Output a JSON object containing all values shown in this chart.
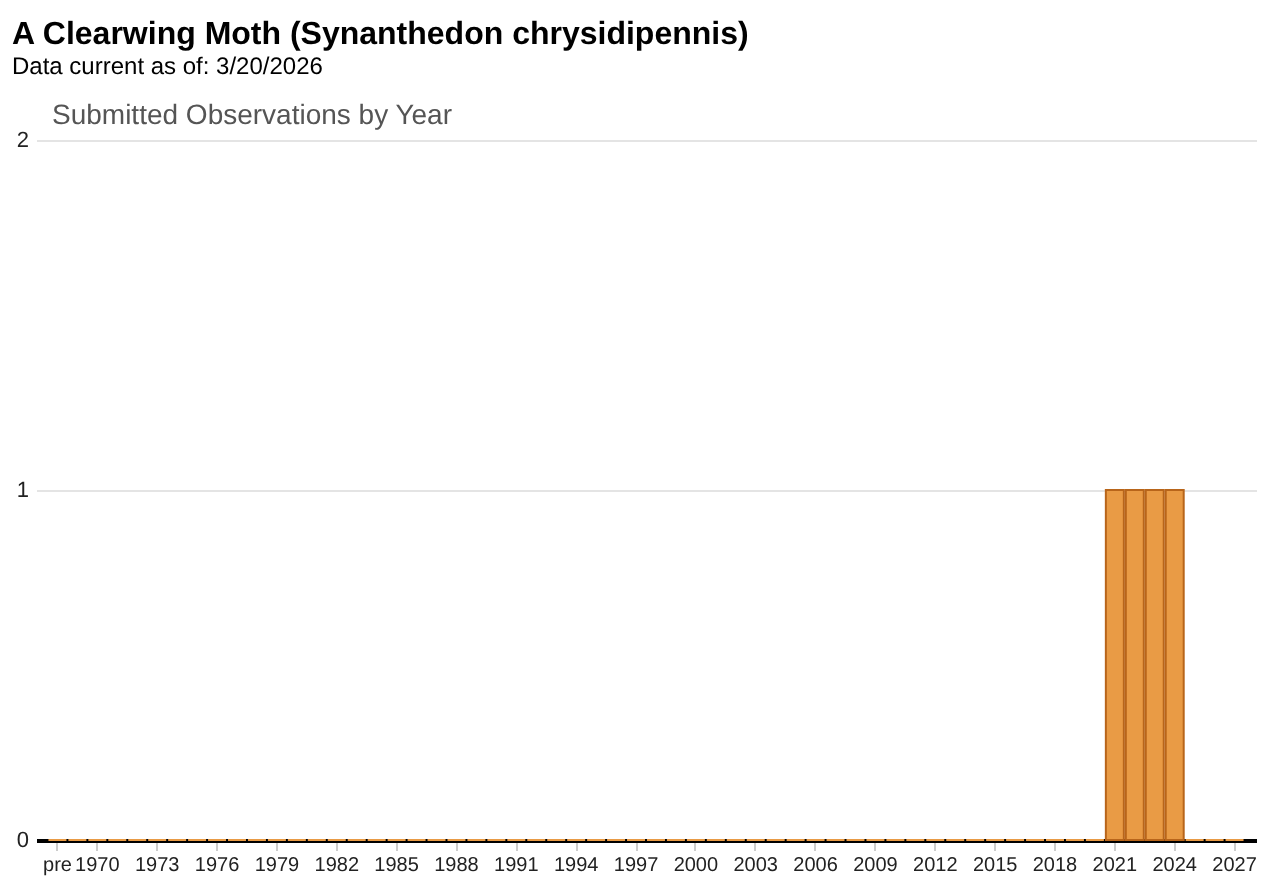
{
  "chart_data": {
    "type": "bar",
    "title": "A Clearwing Moth   (Synanthedon chrysidipennis)",
    "subtitle": "Data current as of: 3/20/2026",
    "annotations": [
      "Submitted Observations by Year"
    ],
    "categories": [
      "pre",
      null,
      "1970",
      null,
      null,
      "1973",
      null,
      null,
      "1976",
      null,
      null,
      "1979",
      null,
      null,
      "1982",
      null,
      null,
      "1985",
      null,
      null,
      "1988",
      null,
      null,
      "1991",
      null,
      null,
      "1994",
      null,
      null,
      "1997",
      null,
      null,
      "2000",
      null,
      null,
      "2003",
      null,
      null,
      "2006",
      null,
      null,
      "2009",
      null,
      null,
      "2012",
      null,
      null,
      "2015",
      null,
      null,
      "2018",
      null,
      null,
      "2021",
      null,
      null,
      "2024",
      null,
      null,
      "2027"
    ],
    "series": [
      {
        "color": "#e99b45",
        "values": [
          0,
          0,
          0,
          0,
          0,
          0,
          0,
          0,
          0,
          0,
          0,
          0,
          0,
          0,
          0,
          0,
          0,
          0,
          0,
          0,
          0,
          0,
          0,
          0,
          0,
          0,
          0,
          0,
          0,
          0,
          0,
          0,
          0,
          0,
          0,
          0,
          0,
          0,
          0,
          0,
          0,
          0,
          0,
          0,
          0,
          0,
          0,
          0,
          0,
          0,
          0,
          0,
          0,
          1,
          1,
          1,
          1,
          0,
          0,
          0
        ]
      }
    ],
    "ylim": [
      0,
      2
    ],
    "yticks": [
      0,
      1,
      2
    ],
    "grid": "y"
  }
}
